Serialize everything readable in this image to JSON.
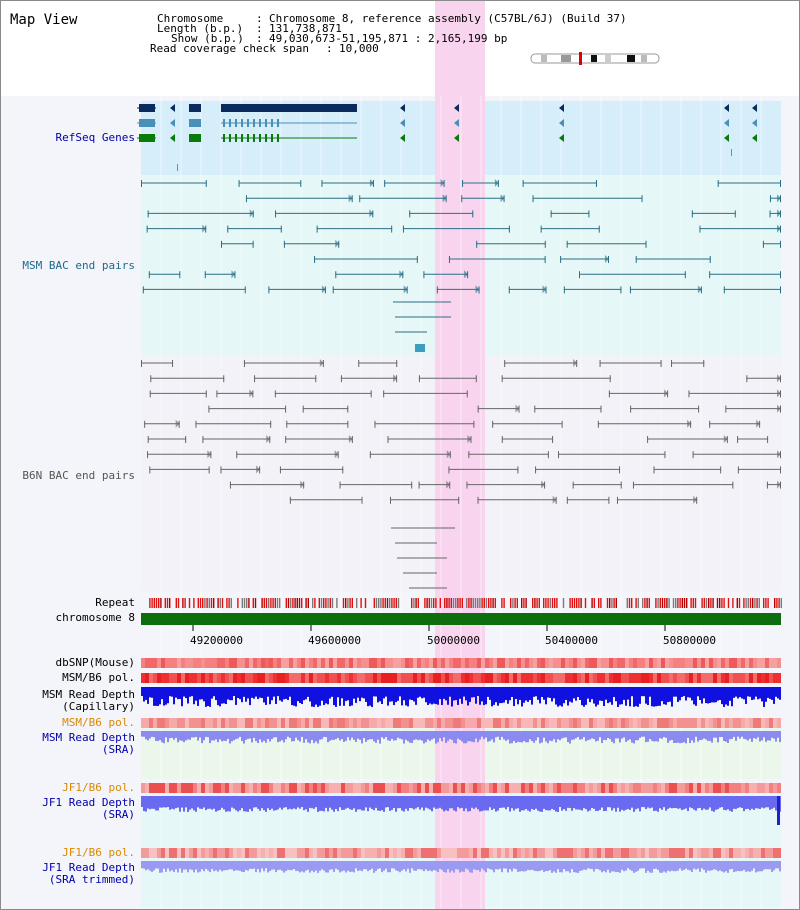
{
  "app": {
    "title": "Map View"
  },
  "header": {
    "chromosome_label": "Chromosome",
    "chromosome_value": "Chromosome 8, reference assembly (C57BL/6J) (Build 37)",
    "length_label": "Length (b.p.)",
    "length_value": "131,738,871",
    "show_label": "Show (b.p.)",
    "show_value": "49,030,673-51,195,871 : 2,165,199 bp",
    "span_label": "Read coverage check span",
    "span_value": "10,000",
    "sep": ":"
  },
  "tracks": {
    "refseq": "RefSeq Genes",
    "msm_bac": "MSM BAC end pairs",
    "b6n_bac": "B6N BAC end pairs",
    "repeat": "Repeat",
    "chromosome": "chromosome 8",
    "dbsnp": "dbSNP(Mouse)",
    "msm_b6_pol": "MSM/B6 pol.",
    "msm_read_depth_cap_1": "MSM Read Depth",
    "msm_read_depth_cap_2": "(Capillary)",
    "msm_b6_pol_2": "MSM/B6 pol.",
    "msm_read_depth_sra_1": "MSM Read Depth",
    "msm_read_depth_sra_2": "(SRA)",
    "jf1_b6_pol": "JF1/B6 pol.",
    "jf1_read_depth_sra_1": "JF1 Read Depth",
    "jf1_read_depth_sra_2": "(SRA)",
    "jf1_b6_pol_2": "JF1/B6 pol.",
    "jf1_read_depth_trim_1": "JF1 Read Depth",
    "jf1_read_depth_trim_2": "(SRA trimmed)"
  },
  "axis": {
    "ticks": [
      "49200000",
      "49600000",
      "50000000",
      "50400000",
      "50800000"
    ]
  },
  "colors": {
    "refseq_bg": "#d6eefa",
    "bac_bg": "#e6f7f7",
    "highlight": "#f8d4ee",
    "msm_color": "#2a6f86",
    "b6n_color": "#666666",
    "chrom_bar": "#0e6e0e",
    "label_black": "#000000",
    "label_blue": "#0000aa",
    "label_orange": "#dd8800",
    "label_teal": "#1a6a8a"
  }
}
